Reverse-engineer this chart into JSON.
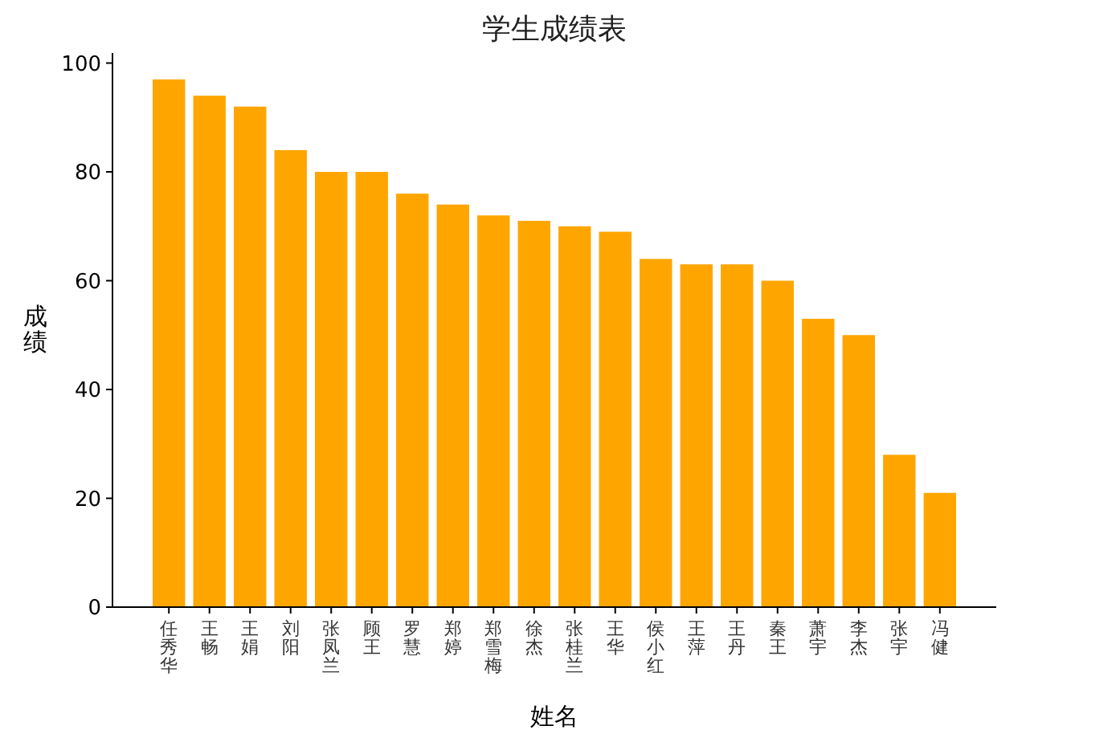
{
  "chart_data": {
    "type": "bar",
    "title": "学生成绩表",
    "xlabel": "姓名",
    "ylabel": "成绩",
    "categories": [
      "任秀华",
      "王畅",
      "王娟",
      "刘阳",
      "张凤兰",
      "顾王",
      "罗慧",
      "郑婷",
      "郑雪梅",
      "徐杰",
      "张桂兰",
      "王华",
      "侯小红",
      "王萍",
      "王丹",
      "秦王",
      "萧宇",
      "李杰",
      "张宇",
      "冯健"
    ],
    "values": [
      97,
      94,
      92,
      84,
      80,
      80,
      76,
      74,
      72,
      71,
      70,
      69,
      64,
      63,
      63,
      60,
      53,
      50,
      28,
      21
    ],
    "color": "#ffa500",
    "ylim": [
      0,
      101.85
    ],
    "yticks": [
      0,
      20,
      40,
      60,
      80,
      100
    ],
    "grid": false
  }
}
